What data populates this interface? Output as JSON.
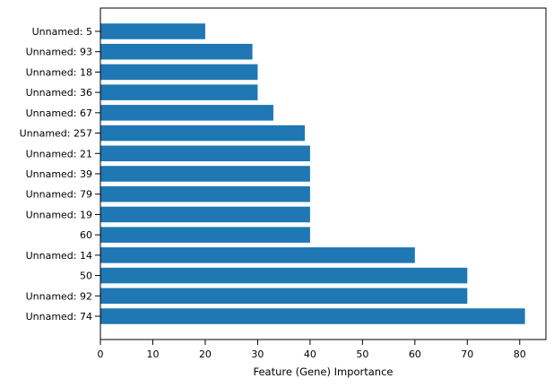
{
  "chart_data": {
    "type": "bar",
    "orientation": "horizontal",
    "title": "",
    "xlabel": "Feature (Gene) Importance",
    "ylabel": "",
    "xlim": [
      0,
      85
    ],
    "xticks": [
      0,
      10,
      20,
      30,
      40,
      50,
      60,
      70,
      80
    ],
    "grid": false,
    "bar_color": "#1f77b4",
    "categories": [
      "Unnamed: 5",
      "Unnamed: 93",
      "Unnamed: 18",
      "Unnamed: 36",
      "Unnamed: 67",
      "Unnamed: 257",
      "Unnamed: 21",
      "Unnamed: 39",
      "Unnamed: 79",
      "Unnamed: 19",
      "60",
      "Unnamed: 14",
      "50",
      "Unnamed: 92",
      "Unnamed: 74"
    ],
    "values": [
      20,
      29,
      30,
      30,
      33,
      39,
      40,
      40,
      40,
      40,
      40,
      60,
      70,
      70,
      81
    ]
  }
}
